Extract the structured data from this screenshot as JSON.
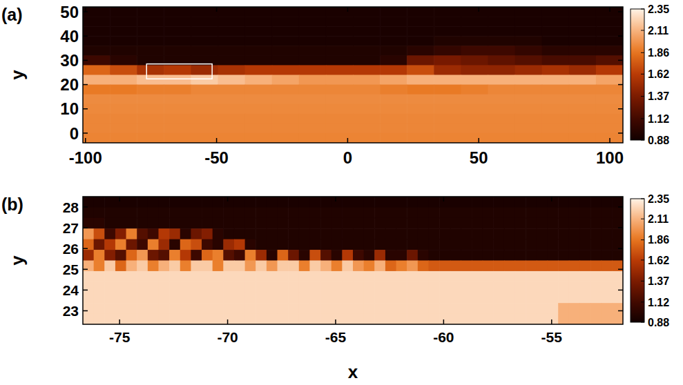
{
  "chart_data": [
    {
      "type": "heatmap",
      "title": "(a)",
      "y_label": "y",
      "xlim": [
        -101,
        105
      ],
      "ylim": [
        -4,
        52
      ],
      "xticks": [
        -100,
        -50,
        0,
        50,
        100
      ],
      "yticks": [
        0,
        10,
        20,
        30,
        40,
        50
      ],
      "colorbar": {
        "range": [
          0.88,
          2.35
        ],
        "ticks": [
          0.88,
          1.12,
          1.37,
          1.62,
          1.86,
          2.11,
          2.35
        ]
      },
      "cells": [
        [
          0.92,
          0.92,
          0.92,
          0.92,
          0.92,
          0.92,
          0.92,
          0.92,
          0.92,
          0.92,
          0.92,
          0.92,
          0.92,
          0.92,
          0.92,
          0.92,
          0.92,
          0.92,
          0.92,
          0.92
        ],
        [
          0.92,
          0.92,
          0.92,
          0.92,
          0.92,
          0.92,
          0.92,
          0.92,
          0.92,
          0.92,
          0.92,
          0.92,
          0.92,
          0.92,
          0.92,
          0.92,
          0.92,
          0.92,
          0.92,
          0.92
        ],
        [
          0.92,
          0.92,
          0.92,
          0.92,
          0.92,
          0.92,
          0.92,
          0.92,
          0.92,
          0.92,
          0.92,
          0.92,
          0.92,
          0.92,
          0.92,
          0.92,
          0.92,
          0.92,
          0.92,
          0.92
        ],
        [
          0.92,
          0.92,
          0.92,
          0.92,
          0.92,
          0.92,
          0.92,
          0.92,
          0.92,
          0.92,
          0.92,
          0.92,
          0.92,
          0.95,
          0.95,
          0.95,
          0.95,
          0.92,
          0.92,
          0.92
        ],
        [
          0.95,
          0.95,
          0.95,
          0.95,
          0.95,
          0.95,
          0.95,
          0.95,
          0.95,
          0.95,
          0.95,
          0.95,
          1.0,
          1.05,
          1.1,
          1.1,
          1.05,
          1.0,
          1.0,
          1.0
        ],
        [
          1.1,
          1.0,
          0.95,
          0.95,
          0.95,
          0.95,
          0.95,
          0.95,
          0.95,
          0.95,
          0.95,
          1.0,
          1.3,
          1.35,
          1.3,
          1.25,
          1.2,
          1.15,
          1.15,
          1.2
        ],
        [
          1.8,
          1.7,
          1.55,
          1.6,
          1.5,
          1.55,
          1.6,
          1.6,
          1.6,
          1.6,
          1.6,
          1.6,
          1.7,
          1.5,
          1.45,
          1.45,
          1.5,
          1.55,
          1.5,
          1.6
        ],
        [
          2.1,
          2.1,
          2.15,
          2.15,
          2.2,
          2.15,
          2.1,
          2.05,
          2.0,
          2.0,
          2.0,
          2.05,
          2.1,
          2.1,
          2.1,
          2.1,
          2.1,
          2.1,
          2.1,
          2.05
        ],
        [
          1.88,
          1.88,
          1.9,
          1.9,
          1.93,
          1.93,
          1.93,
          1.93,
          1.93,
          1.93,
          1.93,
          1.9,
          1.88,
          1.88,
          1.9,
          1.93,
          1.93,
          1.93,
          1.93,
          1.93
        ],
        [
          1.95,
          1.95,
          1.95,
          1.95,
          1.95,
          1.95,
          1.95,
          1.95,
          1.95,
          1.95,
          1.95,
          1.95,
          1.95,
          1.95,
          1.95,
          1.95,
          1.95,
          1.95,
          1.95,
          1.95
        ],
        [
          1.94,
          1.94,
          1.94,
          1.94,
          1.94,
          1.94,
          1.94,
          1.94,
          1.94,
          1.94,
          1.94,
          1.94,
          1.94,
          1.94,
          1.94,
          1.94,
          1.94,
          1.94,
          1.94,
          1.94
        ],
        [
          1.93,
          1.93,
          1.93,
          1.93,
          1.93,
          1.93,
          1.93,
          1.93,
          1.93,
          1.93,
          1.93,
          1.93,
          1.93,
          1.93,
          1.93,
          1.93,
          1.93,
          1.93,
          1.93,
          1.93
        ],
        [
          1.93,
          1.93,
          1.93,
          1.93,
          1.93,
          1.93,
          1.93,
          1.93,
          1.93,
          1.93,
          1.93,
          1.93,
          1.93,
          1.93,
          1.93,
          1.93,
          1.93,
          1.93,
          1.93,
          1.93
        ],
        [
          1.92,
          1.92,
          1.92,
          1.92,
          1.92,
          1.92,
          1.92,
          1.92,
          1.92,
          1.92,
          1.92,
          1.92,
          1.92,
          1.92,
          1.92,
          1.92,
          1.92,
          1.92,
          1.92,
          1.92
        ]
      ]
    },
    {
      "type": "heatmap",
      "title": "(b)",
      "x_label": "x",
      "y_label": "y",
      "xlim": [
        -76.7,
        -51.7
      ],
      "ylim": [
        22.35,
        28.5
      ],
      "xticks": [
        -75,
        -70,
        -65,
        -60,
        -55
      ],
      "yticks": [
        23,
        24,
        25,
        26,
        27,
        28
      ],
      "colorbar": {
        "range": [
          0.88,
          2.35
        ],
        "ticks": [
          0.88,
          1.12,
          1.37,
          1.62,
          1.86,
          2.11,
          2.35
        ]
      },
      "cells": [
        [
          0.92,
          0.92,
          0.92,
          0.92,
          0.92,
          0.92,
          0.92,
          0.92,
          0.92,
          0.92,
          0.92,
          0.92,
          0.92,
          0.92,
          0.92,
          0.92,
          0.92,
          0.92,
          0.92,
          0.92,
          0.92,
          0.92,
          0.92,
          0.92,
          0.92,
          0.92,
          0.92,
          0.92,
          0.92,
          0.92,
          0.92,
          0.92,
          0.92,
          0.92,
          0.92,
          0.92,
          0.92,
          0.92,
          0.92,
          0.92,
          0.92,
          0.92,
          0.92,
          0.92,
          0.92,
          0.92,
          0.92,
          0.92,
          0.92,
          0.92
        ],
        [
          0.95,
          0.95,
          0.95,
          0.95,
          0.95,
          0.95,
          0.95,
          0.95,
          0.95,
          0.95,
          0.95,
          0.95,
          0.95,
          0.95,
          0.95,
          0.95,
          0.95,
          0.95,
          0.95,
          0.95,
          0.95,
          0.95,
          0.95,
          0.95,
          0.95,
          0.95,
          0.95,
          0.95,
          0.95,
          0.95,
          0.95,
          0.95,
          0.95,
          0.95,
          0.95,
          0.95,
          0.95,
          0.95,
          0.95,
          0.95,
          0.95,
          0.95,
          0.95,
          0.95,
          0.95,
          0.95,
          0.95,
          0.95,
          0.95,
          0.95
        ],
        [
          1.0,
          1.0,
          0.95,
          0.95,
          0.95,
          0.95,
          0.95,
          0.95,
          0.95,
          0.95,
          0.95,
          0.95,
          0.95,
          0.95,
          0.95,
          0.95,
          0.95,
          0.95,
          0.95,
          0.95,
          0.95,
          0.95,
          0.95,
          0.95,
          0.95,
          0.95,
          0.95,
          0.95,
          0.95,
          0.95,
          0.95,
          0.95,
          0.95,
          0.95,
          0.95,
          0.95,
          0.95,
          0.95,
          0.95,
          0.95,
          0.95,
          0.95,
          0.95,
          0.95,
          0.95,
          0.95,
          0.95,
          0.95,
          0.95,
          0.95
        ],
        [
          2.0,
          1.7,
          1.1,
          1.4,
          1.9,
          1.2,
          1.1,
          1.6,
          1.5,
          1.0,
          1.3,
          1.4,
          1.0,
          0.95,
          0.95,
          0.95,
          0.95,
          0.95,
          0.95,
          0.95,
          0.95,
          0.95,
          0.95,
          0.95,
          0.95,
          0.95,
          0.95,
          0.95,
          0.95,
          0.95,
          0.95,
          0.95,
          0.95,
          0.95,
          0.95,
          0.95,
          0.95,
          0.95,
          0.95,
          0.95,
          0.95,
          0.95,
          0.95,
          0.95,
          0.95,
          0.95,
          0.95,
          0.95,
          0.95,
          0.95
        ],
        [
          1.8,
          1.3,
          1.6,
          1.9,
          1.3,
          1.1,
          1.9,
          1.5,
          1.0,
          1.8,
          1.7,
          1.1,
          1.0,
          1.5,
          1.6,
          1.0,
          0.95,
          0.95,
          0.95,
          0.95,
          0.95,
          0.95,
          0.95,
          0.95,
          0.95,
          0.95,
          0.95,
          0.95,
          0.95,
          0.95,
          0.95,
          0.95,
          0.95,
          0.95,
          0.95,
          0.95,
          0.95,
          0.95,
          0.95,
          0.95,
          0.95,
          0.95,
          0.95,
          0.95,
          0.95,
          0.95,
          0.95,
          0.95,
          0.95,
          0.95
        ],
        [
          1.5,
          1.9,
          1.4,
          1.2,
          1.8,
          2.0,
          1.3,
          1.2,
          1.9,
          1.6,
          1.1,
          1.8,
          1.9,
          1.2,
          1.1,
          1.9,
          1.5,
          1.0,
          1.8,
          1.3,
          1.0,
          1.7,
          1.2,
          1.0,
          1.6,
          1.1,
          1.0,
          1.5,
          1.0,
          1.0,
          1.3,
          1.0,
          0.95,
          0.95,
          0.95,
          0.95,
          0.95,
          0.95,
          0.95,
          0.95,
          0.95,
          0.95,
          0.95,
          0.95,
          0.95,
          0.95,
          0.95,
          0.95,
          0.95,
          0.95
        ],
        [
          2.1,
          1.9,
          2.2,
          1.8,
          2.1,
          2.2,
          1.9,
          2.1,
          2.2,
          1.9,
          2.2,
          2.2,
          1.9,
          2.2,
          2.2,
          2.0,
          2.2,
          2.0,
          2.2,
          2.2,
          1.9,
          2.2,
          2.1,
          1.9,
          2.2,
          2.0,
          1.9,
          2.1,
          1.8,
          1.9,
          2.0,
          1.8,
          1.75,
          1.75,
          1.75,
          1.75,
          1.75,
          1.75,
          1.75,
          1.75,
          1.75,
          1.75,
          1.75,
          1.75,
          1.75,
          1.75,
          1.75,
          1.75,
          1.75,
          1.75
        ],
        [
          2.25,
          2.25,
          2.25,
          2.25,
          2.25,
          2.25,
          2.25,
          2.25,
          2.25,
          2.25,
          2.25,
          2.25,
          2.25,
          2.25,
          2.25,
          2.25,
          2.25,
          2.25,
          2.25,
          2.25,
          2.25,
          2.25,
          2.25,
          2.25,
          2.25,
          2.25,
          2.25,
          2.25,
          2.25,
          2.25,
          2.25,
          2.25,
          2.25,
          2.25,
          2.25,
          2.25,
          2.25,
          2.25,
          2.25,
          2.25,
          2.25,
          2.25,
          2.25,
          2.25,
          2.25,
          2.25,
          2.25,
          2.25,
          2.25,
          2.25
        ],
        [
          2.25,
          2.25,
          2.25,
          2.25,
          2.25,
          2.25,
          2.25,
          2.25,
          2.25,
          2.25,
          2.25,
          2.25,
          2.25,
          2.25,
          2.25,
          2.25,
          2.25,
          2.25,
          2.25,
          2.25,
          2.25,
          2.25,
          2.25,
          2.25,
          2.25,
          2.25,
          2.25,
          2.25,
          2.25,
          2.25,
          2.25,
          2.25,
          2.25,
          2.25,
          2.25,
          2.25,
          2.25,
          2.25,
          2.25,
          2.25,
          2.25,
          2.25,
          2.25,
          2.25,
          2.25,
          2.25,
          2.25,
          2.25,
          2.25,
          2.25
        ],
        [
          2.25,
          2.25,
          2.25,
          2.25,
          2.25,
          2.25,
          2.25,
          2.25,
          2.25,
          2.25,
          2.25,
          2.25,
          2.25,
          2.25,
          2.25,
          2.25,
          2.25,
          2.25,
          2.25,
          2.25,
          2.25,
          2.25,
          2.25,
          2.25,
          2.25,
          2.25,
          2.25,
          2.25,
          2.25,
          2.25,
          2.25,
          2.25,
          2.25,
          2.25,
          2.25,
          2.25,
          2.25,
          2.25,
          2.25,
          2.25,
          2.25,
          2.25,
          2.25,
          2.25,
          2.25,
          2.25,
          2.25,
          2.25,
          2.25,
          2.25
        ],
        [
          2.25,
          2.25,
          2.25,
          2.25,
          2.25,
          2.25,
          2.25,
          2.25,
          2.25,
          2.25,
          2.25,
          2.25,
          2.25,
          2.25,
          2.25,
          2.25,
          2.25,
          2.25,
          2.25,
          2.25,
          2.25,
          2.25,
          2.25,
          2.25,
          2.25,
          2.25,
          2.25,
          2.25,
          2.25,
          2.25,
          2.25,
          2.25,
          2.25,
          2.25,
          2.25,
          2.25,
          2.25,
          2.25,
          2.25,
          2.25,
          2.25,
          2.25,
          2.25,
          2.25,
          2.1,
          2.1,
          2.1,
          2.1,
          2.1,
          2.1
        ],
        [
          2.25,
          2.25,
          2.25,
          2.25,
          2.25,
          2.25,
          2.25,
          2.25,
          2.25,
          2.25,
          2.25,
          2.25,
          2.25,
          2.25,
          2.25,
          2.25,
          2.25,
          2.25,
          2.25,
          2.25,
          2.25,
          2.25,
          2.25,
          2.25,
          2.25,
          2.25,
          2.25,
          2.25,
          2.25,
          2.25,
          2.25,
          2.25,
          2.25,
          2.25,
          2.25,
          2.25,
          2.25,
          2.25,
          2.25,
          2.25,
          2.25,
          2.25,
          2.25,
          2.25,
          2.1,
          2.1,
          2.1,
          2.1,
          2.1,
          2.1
        ]
      ]
    }
  ]
}
